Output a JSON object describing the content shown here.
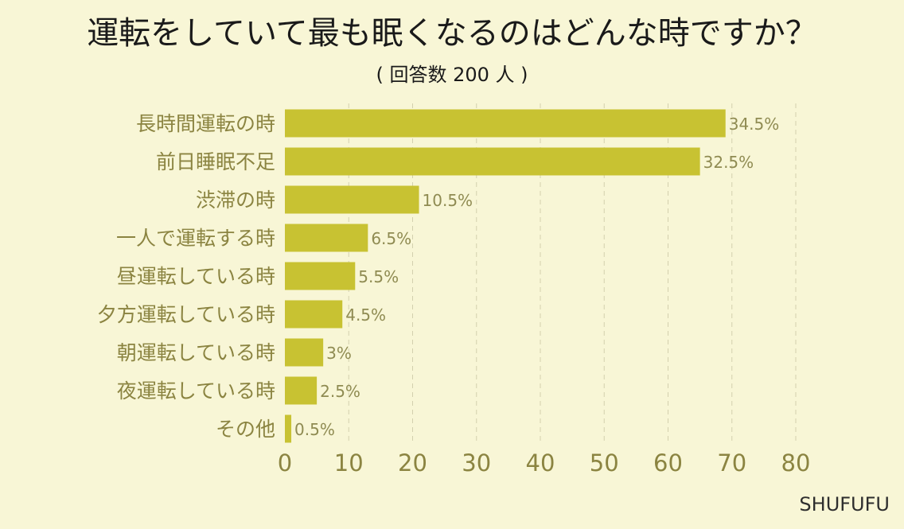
{
  "brand": "SHUFUFU",
  "chart_data": {
    "type": "bar",
    "orientation": "horizontal",
    "title": "運転をしていて最も眠くなるのはどんな時ですか？",
    "subtitle": "( 回答数 200 人 )",
    "categories": [
      "長時間運転の時",
      "前日睡眠不足",
      "渋滞の時",
      "一人で運転する時",
      "昼運転している時",
      "夕方運転している時",
      "朝運転している時",
      "夜運転している時",
      "その他"
    ],
    "values": [
      69,
      65,
      21,
      13,
      11,
      9,
      6,
      5,
      1
    ],
    "data_labels": [
      "34.5%",
      "32.5%",
      "10.5%",
      "6.5%",
      "5.5%",
      "4.5%",
      "3%",
      "2.5%",
      "0.5%"
    ],
    "xlim": [
      0,
      80
    ],
    "xticks": [
      0,
      10,
      20,
      30,
      40,
      50,
      60,
      70,
      80
    ],
    "grid": true,
    "colors": {
      "background": "#f8f6d6",
      "bar": "#c8c232",
      "grid": "#d3d0ae",
      "category_text": "#8b8441",
      "label_text": "#8f8b52",
      "tick_text": "#8b8441",
      "title_text": "#1a1a1a",
      "brand_text": "#2e2e2e"
    }
  }
}
